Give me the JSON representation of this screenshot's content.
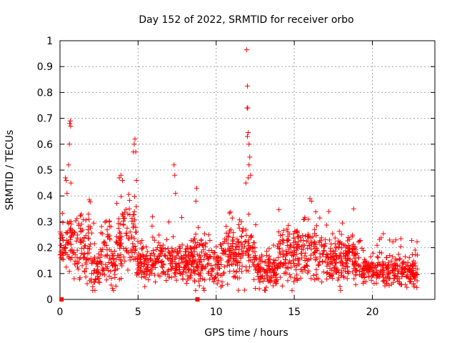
{
  "chart_data": {
    "type": "scatter",
    "title": "Day 152 of 2022, SRMTID for receiver orbo",
    "xlabel": "GPS time / hours",
    "ylabel": "SRMTID / TECUs",
    "xlim": [
      0,
      24
    ],
    "ylim": [
      0,
      1
    ],
    "x_ticks": [
      0,
      5,
      10,
      15,
      20
    ],
    "y_ticks": [
      0,
      0.1,
      0.2,
      0.3,
      0.4,
      0.5,
      0.6,
      0.7,
      0.8,
      0.9,
      1
    ],
    "x_tick_labels": [
      "0",
      "5",
      "10",
      "15",
      "20"
    ],
    "y_tick_labels": [
      "0",
      "0.1",
      "0.2",
      "0.3",
      "0.4",
      "0.5",
      "0.6",
      "0.7",
      "0.8",
      "0.9",
      "1"
    ],
    "grid": true,
    "marker": "plus",
    "marker_color": "#ff0000",
    "zero_markers_x": [
      0.1,
      8.8
    ],
    "bands": [
      {
        "t0": 0.0,
        "t1": 0.4,
        "base": 0.19,
        "spread": 0.06
      },
      {
        "t0": 0.4,
        "t1": 0.9,
        "base": 0.22,
        "spread": 0.08
      },
      {
        "t0": 0.9,
        "t1": 2.0,
        "base": 0.2,
        "spread": 0.08
      },
      {
        "t0": 2.0,
        "t1": 2.6,
        "base": 0.12,
        "spread": 0.06
      },
      {
        "t0": 2.6,
        "t1": 3.2,
        "base": 0.2,
        "spread": 0.09
      },
      {
        "t0": 3.2,
        "t1": 3.6,
        "base": 0.12,
        "spread": 0.06
      },
      {
        "t0": 3.6,
        "t1": 4.9,
        "base": 0.24,
        "spread": 0.1
      },
      {
        "t0": 4.9,
        "t1": 6.5,
        "base": 0.15,
        "spread": 0.06
      },
      {
        "t0": 6.5,
        "t1": 8.5,
        "base": 0.14,
        "spread": 0.06
      },
      {
        "t0": 8.5,
        "t1": 10.5,
        "base": 0.14,
        "spread": 0.07
      },
      {
        "t0": 10.5,
        "t1": 12.5,
        "base": 0.18,
        "spread": 0.08
      },
      {
        "t0": 12.5,
        "t1": 14.0,
        "base": 0.11,
        "spread": 0.05
      },
      {
        "t0": 14.0,
        "t1": 16.5,
        "base": 0.18,
        "spread": 0.08
      },
      {
        "t0": 16.5,
        "t1": 19.3,
        "base": 0.16,
        "spread": 0.07
      },
      {
        "t0": 19.3,
        "t1": 22.9,
        "base": 0.11,
        "spread": 0.04
      }
    ],
    "spikes": [
      {
        "x": 0.35,
        "y": 0.47
      },
      {
        "x": 0.4,
        "y": 0.46
      },
      {
        "x": 0.45,
        "y": 0.41
      },
      {
        "x": 0.55,
        "y": 0.52
      },
      {
        "x": 0.6,
        "y": 0.6
      },
      {
        "x": 0.62,
        "y": 0.68
      },
      {
        "x": 0.66,
        "y": 0.69
      },
      {
        "x": 0.68,
        "y": 0.67
      },
      {
        "x": 0.7,
        "y": 0.45
      },
      {
        "x": 3.8,
        "y": 0.47
      },
      {
        "x": 3.9,
        "y": 0.48
      },
      {
        "x": 4.0,
        "y": 0.46
      },
      {
        "x": 4.7,
        "y": 0.57
      },
      {
        "x": 4.75,
        "y": 0.6
      },
      {
        "x": 4.8,
        "y": 0.62
      },
      {
        "x": 4.85,
        "y": 0.57
      },
      {
        "x": 4.9,
        "y": 0.46
      },
      {
        "x": 7.3,
        "y": 0.52
      },
      {
        "x": 7.35,
        "y": 0.48
      },
      {
        "x": 7.4,
        "y": 0.41
      },
      {
        "x": 8.75,
        "y": 0.43
      },
      {
        "x": 8.7,
        "y": 0.38
      },
      {
        "x": 11.95,
        "y": 0.965
      },
      {
        "x": 12.0,
        "y": 0.825
      },
      {
        "x": 11.98,
        "y": 0.74
      },
      {
        "x": 12.02,
        "y": 0.74
      },
      {
        "x": 12.05,
        "y": 0.645
      },
      {
        "x": 12.0,
        "y": 0.63
      },
      {
        "x": 12.1,
        "y": 0.6
      },
      {
        "x": 12.15,
        "y": 0.55
      },
      {
        "x": 12.1,
        "y": 0.52
      },
      {
        "x": 12.2,
        "y": 0.48
      },
      {
        "x": 12.05,
        "y": 0.47
      },
      {
        "x": 11.9,
        "y": 0.45
      },
      {
        "x": 16.0,
        "y": 0.39
      },
      {
        "x": 16.1,
        "y": 0.38
      },
      {
        "x": 18.8,
        "y": 0.35
      },
      {
        "x": 21.5,
        "y": 0.23
      }
    ]
  }
}
